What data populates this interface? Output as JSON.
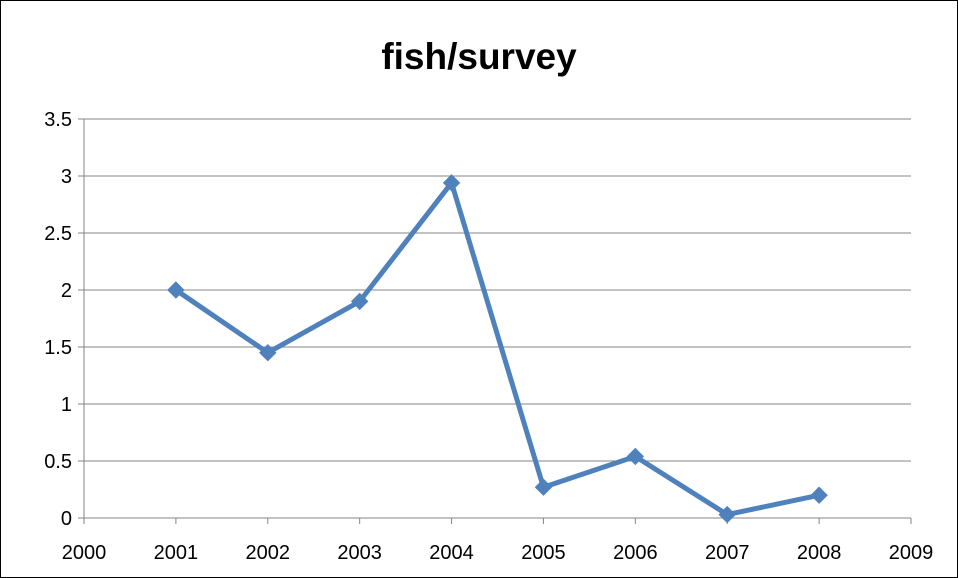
{
  "chart_data": {
    "type": "line",
    "title": "fish/survey",
    "xlabel": "",
    "ylabel": "",
    "xlim": [
      2000,
      2009
    ],
    "ylim": [
      0,
      3.5
    ],
    "x_ticks": [
      "2000",
      "2001",
      "2002",
      "2003",
      "2004",
      "2005",
      "2006",
      "2007",
      "2008",
      "2009"
    ],
    "y_ticks": [
      "0",
      "0.5",
      "1",
      "1.5",
      "2",
      "2.5",
      "3",
      "3.5"
    ],
    "grid": "horizontal",
    "legend": "none",
    "series": [
      {
        "marker": "diamond",
        "color": "#4F81BD",
        "x": [
          2001,
          2002,
          2003,
          2004,
          2005,
          2006,
          2007,
          2008
        ],
        "y": [
          2.0,
          1.45,
          1.9,
          2.94,
          0.27,
          0.54,
          0.03,
          0.2
        ]
      }
    ]
  }
}
